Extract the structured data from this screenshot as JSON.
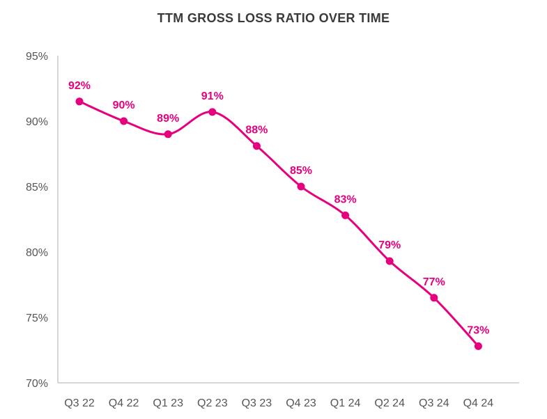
{
  "chart_data": {
    "type": "line",
    "title": "TTM GROSS LOSS RATIO OVER TIME",
    "xlabel": "",
    "ylabel": "",
    "categories": [
      "Q3 22",
      "Q4 22",
      "Q1 23",
      "Q2 23",
      "Q3 23",
      "Q4 23",
      "Q1 24",
      "Q2 24",
      "Q3 24",
      "Q4 24"
    ],
    "series": [
      {
        "values": [
          91.5,
          90.0,
          89.0,
          90.7,
          88.1,
          85.0,
          82.8,
          79.3,
          76.5,
          72.8
        ],
        "data_labels": [
          "92%",
          "90%",
          "89%",
          "91%",
          "88%",
          "85%",
          "83%",
          "79%",
          "77%",
          "73%"
        ]
      }
    ],
    "ylim": [
      70,
      95
    ],
    "yticks": [
      70,
      75,
      80,
      85,
      90,
      95
    ],
    "ytick_labels": [
      "70%",
      "75%",
      "80%",
      "85%",
      "90%",
      "95%"
    ],
    "grid": false,
    "legend": "none",
    "line_style": "smooth",
    "colors": {
      "series": "#e6007e",
      "axis": "#c8c8c8",
      "tick_text": "#555555",
      "title": "#3a3a3a"
    }
  }
}
